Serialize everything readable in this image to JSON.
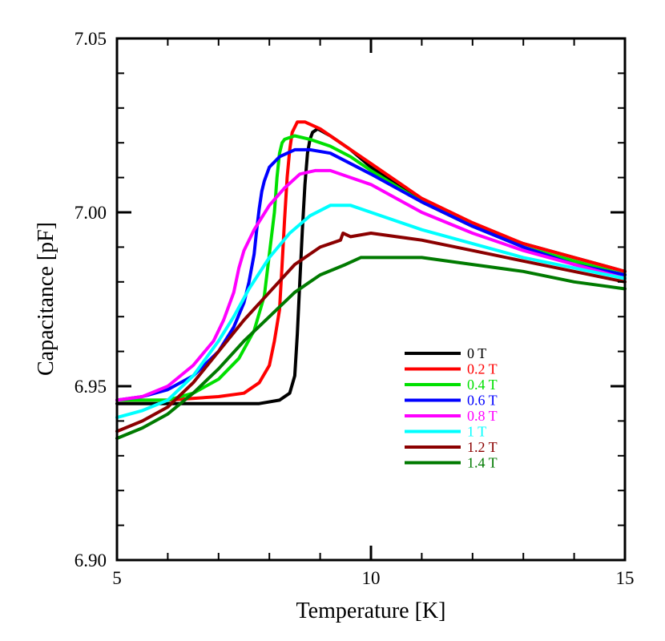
{
  "chart_data": {
    "type": "line",
    "title": "",
    "xlabel": "Temperature [K]",
    "ylabel": "Capacitance [pF]",
    "xlim": [
      5,
      15
    ],
    "ylim": [
      6.9,
      7.05
    ],
    "x_ticks": [
      {
        "value": 5,
        "label": "5"
      },
      {
        "value": 10,
        "label": "10"
      },
      {
        "value": 15,
        "label": "15"
      }
    ],
    "y_ticks": [
      {
        "value": 6.9,
        "label": "6.90"
      },
      {
        "value": 6.95,
        "label": "6.95"
      },
      {
        "value": 7.0,
        "label": "7.00"
      },
      {
        "value": 7.05,
        "label": "7.05"
      }
    ],
    "x_minor_step": 1,
    "y_minor_step": 0.01,
    "grid": false,
    "legend_position": "right-middle",
    "series": [
      {
        "name": "0 T",
        "color": "#000000",
        "points": [
          [
            5.0,
            6.945
          ],
          [
            6.0,
            6.945
          ],
          [
            7.0,
            6.945
          ],
          [
            7.8,
            6.945
          ],
          [
            8.2,
            6.946
          ],
          [
            8.4,
            6.948
          ],
          [
            8.5,
            6.953
          ],
          [
            8.55,
            6.965
          ],
          [
            8.6,
            6.98
          ],
          [
            8.65,
            6.995
          ],
          [
            8.7,
            7.008
          ],
          [
            8.75,
            7.017
          ],
          [
            8.8,
            7.021
          ],
          [
            8.85,
            7.023
          ],
          [
            8.95,
            7.024
          ],
          [
            9.2,
            7.022
          ],
          [
            9.6,
            7.018
          ],
          [
            10.0,
            7.013
          ],
          [
            11.0,
            7.003
          ],
          [
            12.0,
            6.996
          ],
          [
            13.0,
            6.991
          ],
          [
            14.0,
            6.987
          ],
          [
            15.0,
            6.983
          ]
        ]
      },
      {
        "name": "0.2 T",
        "color": "#ff0000",
        "points": [
          [
            5.0,
            6.946
          ],
          [
            6.0,
            6.946
          ],
          [
            7.0,
            6.947
          ],
          [
            7.5,
            6.948
          ],
          [
            7.8,
            6.951
          ],
          [
            8.0,
            6.956
          ],
          [
            8.1,
            6.963
          ],
          [
            8.2,
            6.972
          ],
          [
            8.25,
            6.985
          ],
          [
            8.3,
            6.998
          ],
          [
            8.35,
            7.01
          ],
          [
            8.4,
            7.018
          ],
          [
            8.45,
            7.023
          ],
          [
            8.55,
            7.026
          ],
          [
            8.7,
            7.026
          ],
          [
            9.0,
            7.024
          ],
          [
            9.5,
            7.019
          ],
          [
            10.0,
            7.014
          ],
          [
            11.0,
            7.004
          ],
          [
            12.0,
            6.997
          ],
          [
            13.0,
            6.991
          ],
          [
            14.0,
            6.987
          ],
          [
            15.0,
            6.983
          ]
        ]
      },
      {
        "name": "0.4 T",
        "color": "#00e000",
        "points": [
          [
            5.0,
            6.946
          ],
          [
            6.0,
            6.946
          ],
          [
            6.5,
            6.948
          ],
          [
            7.0,
            6.952
          ],
          [
            7.4,
            6.958
          ],
          [
            7.7,
            6.966
          ],
          [
            7.9,
            6.976
          ],
          [
            8.0,
            6.988
          ],
          [
            8.1,
            7.0
          ],
          [
            8.15,
            7.01
          ],
          [
            8.2,
            7.017
          ],
          [
            8.25,
            7.02
          ],
          [
            8.3,
            7.021
          ],
          [
            8.5,
            7.022
          ],
          [
            8.8,
            7.021
          ],
          [
            9.2,
            7.019
          ],
          [
            9.6,
            7.016
          ],
          [
            10.0,
            7.012
          ],
          [
            11.0,
            7.003
          ],
          [
            12.0,
            6.996
          ],
          [
            13.0,
            6.99
          ],
          [
            14.0,
            6.986
          ],
          [
            15.0,
            6.982
          ]
        ]
      },
      {
        "name": "0.6 T",
        "color": "#0000ff",
        "points": [
          [
            5.0,
            6.946
          ],
          [
            5.5,
            6.947
          ],
          [
            6.0,
            6.949
          ],
          [
            6.5,
            6.953
          ],
          [
            7.0,
            6.96
          ],
          [
            7.3,
            6.967
          ],
          [
            7.5,
            6.974
          ],
          [
            7.6,
            6.98
          ],
          [
            7.7,
            6.988
          ],
          [
            7.75,
            6.995
          ],
          [
            7.8,
            7.001
          ],
          [
            7.85,
            7.006
          ],
          [
            7.9,
            7.009
          ],
          [
            8.0,
            7.013
          ],
          [
            8.2,
            7.016
          ],
          [
            8.5,
            7.018
          ],
          [
            8.8,
            7.018
          ],
          [
            9.2,
            7.017
          ],
          [
            9.6,
            7.014
          ],
          [
            10.0,
            7.011
          ],
          [
            11.0,
            7.003
          ],
          [
            12.0,
            6.996
          ],
          [
            13.0,
            6.99
          ],
          [
            14.0,
            6.985
          ],
          [
            15.0,
            6.982
          ]
        ]
      },
      {
        "name": "0.8 T",
        "color": "#ff00ff",
        "points": [
          [
            5.0,
            6.946
          ],
          [
            5.5,
            6.947
          ],
          [
            6.0,
            6.95
          ],
          [
            6.5,
            6.956
          ],
          [
            6.9,
            6.963
          ],
          [
            7.1,
            6.969
          ],
          [
            7.3,
            6.977
          ],
          [
            7.4,
            6.984
          ],
          [
            7.5,
            6.989
          ],
          [
            7.7,
            6.995
          ],
          [
            8.0,
            7.002
          ],
          [
            8.3,
            7.007
          ],
          [
            8.6,
            7.011
          ],
          [
            8.9,
            7.012
          ],
          [
            9.2,
            7.012
          ],
          [
            9.6,
            7.01
          ],
          [
            10.0,
            7.008
          ],
          [
            11.0,
            7.0
          ],
          [
            12.0,
            6.994
          ],
          [
            13.0,
            6.989
          ],
          [
            14.0,
            6.985
          ],
          [
            15.0,
            6.981
          ]
        ]
      },
      {
        "name": "1 T",
        "color": "#00ffff",
        "points": [
          [
            5.0,
            6.941
          ],
          [
            5.5,
            6.943
          ],
          [
            6.0,
            6.946
          ],
          [
            6.5,
            6.953
          ],
          [
            7.0,
            6.963
          ],
          [
            7.3,
            6.97
          ],
          [
            7.6,
            6.978
          ],
          [
            8.0,
            6.987
          ],
          [
            8.4,
            6.994
          ],
          [
            8.8,
            6.999
          ],
          [
            9.2,
            7.002
          ],
          [
            9.6,
            7.002
          ],
          [
            10.0,
            7.0
          ],
          [
            11.0,
            6.995
          ],
          [
            12.0,
            6.991
          ],
          [
            13.0,
            6.987
          ],
          [
            14.0,
            6.984
          ],
          [
            15.0,
            6.981
          ]
        ]
      },
      {
        "name": "1.2 T",
        "color": "#8b0000",
        "points": [
          [
            5.0,
            6.937
          ],
          [
            5.5,
            6.94
          ],
          [
            6.0,
            6.944
          ],
          [
            6.5,
            6.951
          ],
          [
            7.0,
            6.96
          ],
          [
            7.5,
            6.969
          ],
          [
            8.0,
            6.977
          ],
          [
            8.5,
            6.985
          ],
          [
            9.0,
            6.99
          ],
          [
            9.4,
            6.992
          ],
          [
            9.45,
            6.994
          ],
          [
            9.6,
            6.993
          ],
          [
            10.0,
            6.994
          ],
          [
            11.0,
            6.992
          ],
          [
            12.0,
            6.989
          ],
          [
            13.0,
            6.986
          ],
          [
            14.0,
            6.983
          ],
          [
            15.0,
            6.98
          ]
        ]
      },
      {
        "name": "1.4 T",
        "color": "#007a00",
        "points": [
          [
            5.0,
            6.935
          ],
          [
            5.5,
            6.938
          ],
          [
            6.0,
            6.942
          ],
          [
            6.5,
            6.948
          ],
          [
            7.0,
            6.955
          ],
          [
            7.5,
            6.963
          ],
          [
            8.0,
            6.97
          ],
          [
            8.5,
            6.977
          ],
          [
            9.0,
            6.982
          ],
          [
            9.5,
            6.985
          ],
          [
            9.8,
            6.987
          ],
          [
            10.0,
            6.987
          ],
          [
            11.0,
            6.987
          ],
          [
            12.0,
            6.985
          ],
          [
            13.0,
            6.983
          ],
          [
            14.0,
            6.98
          ],
          [
            15.0,
            6.978
          ]
        ]
      }
    ]
  }
}
